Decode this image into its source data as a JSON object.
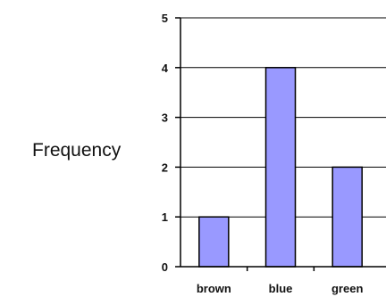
{
  "chart_data": {
    "type": "bar",
    "title": "",
    "xlabel": "",
    "ylabel": "Frequency",
    "categories": [
      "brown",
      "blue",
      "green"
    ],
    "values": [
      1,
      4,
      2
    ],
    "ylim": [
      0,
      5
    ],
    "yticks": [
      "0",
      "1",
      "2",
      "3",
      "4",
      "5"
    ],
    "grid": true,
    "legend": "none",
    "colors": {
      "bar": "#9999ff",
      "bar_outline": "#000000",
      "grid": "#000000",
      "axis": "#000000"
    }
  }
}
